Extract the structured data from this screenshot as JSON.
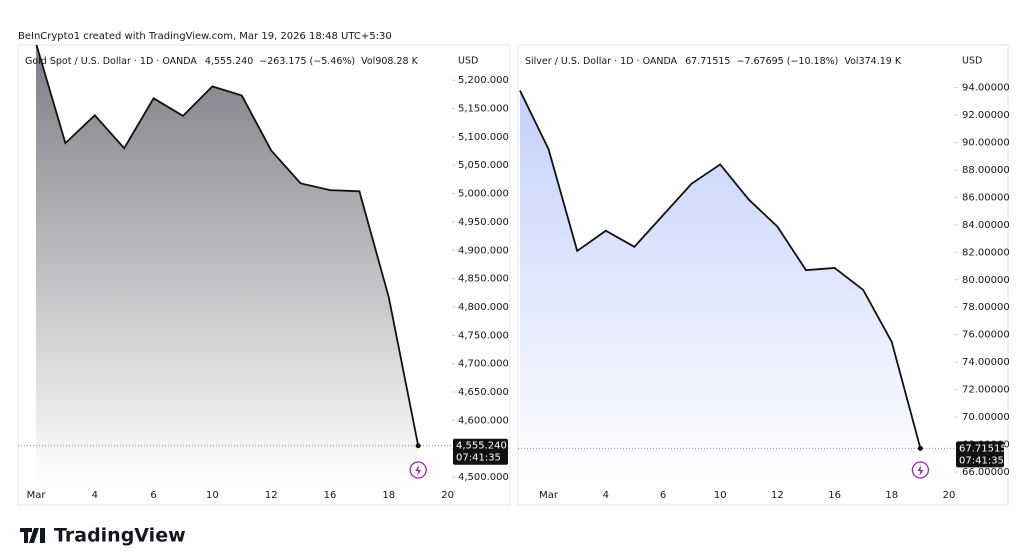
{
  "header": "BeInCrypto1 created with TradingView.com, Mar 19, 2026 18:48 UTC+5:30",
  "footer": "TradingView",
  "chart_data": [
    {
      "type": "area",
      "title": "Gold Spot / U.S. Dollar · 1D · OANDA",
      "price": "4,555.240",
      "change": "−263.175 (−5.46%)",
      "volume": "Vol908.28 K",
      "currency": "USD",
      "countdown": "07:41:35",
      "categories": [
        "Mar",
        null,
        "4",
        null,
        "6",
        null,
        "10",
        null,
        "12",
        null,
        "16",
        null,
        "18",
        null,
        "20"
      ],
      "values": [
        5265,
        5089,
        5138,
        5080,
        5168,
        5137,
        5189,
        5173,
        5076,
        5018,
        5006,
        5004,
        4817,
        4555.24,
        null
      ],
      "value_labels": [
        null,
        null,
        null,
        null,
        null,
        null,
        null,
        null,
        null,
        null,
        null,
        null,
        null,
        "4,555.240",
        null
      ],
      "color": "#111111",
      "fill": "#7c7c84",
      "ylim": [
        4486,
        5262
      ],
      "yticks": [
        {
          "value": 4500,
          "label": "4,500.000"
        },
        {
          "value": 4550,
          "label": "4,550.000"
        },
        {
          "value": 4600,
          "label": "4,600.000"
        },
        {
          "value": 4650,
          "label": "4,650.000"
        },
        {
          "value": 4700,
          "label": "4,700.000"
        },
        {
          "value": 4750,
          "label": "4,750.000"
        },
        {
          "value": 4800,
          "label": "4,800.000"
        },
        {
          "value": 4850,
          "label": "4,850.000"
        },
        {
          "value": 4900,
          "label": "4,900.000"
        },
        {
          "value": 4950,
          "label": "4,950.000"
        },
        {
          "value": 5000,
          "label": "5,000.000"
        },
        {
          "value": 5050,
          "label": "5,050.000"
        },
        {
          "value": 5100,
          "label": "5,100.000"
        },
        {
          "value": 5150,
          "label": "5,150.000"
        },
        {
          "value": 5200,
          "label": "5,200.000"
        }
      ]
    },
    {
      "type": "area",
      "title": "Silver / U.S. Dollar · 1D · OANDA",
      "price": "67.71515",
      "change": "−7.67695 (−10.18%)",
      "volume": "Vol374.19 K",
      "currency": "USD",
      "countdown": "07:41:35",
      "categories": [
        null,
        "Mar",
        null,
        "4",
        null,
        "6",
        null,
        "10",
        null,
        "12",
        null,
        "16",
        null,
        "18",
        null,
        "20"
      ],
      "values": [
        93.78,
        89.5,
        82.1,
        83.57,
        82.4,
        84.7,
        87.0,
        88.4,
        85.84,
        83.87,
        80.7,
        80.86,
        79.26,
        75.46,
        67.71515,
        null
      ],
      "value_labels": [
        null,
        null,
        null,
        null,
        null,
        null,
        null,
        null,
        null,
        null,
        null,
        null,
        null,
        null,
        "67.71515",
        null
      ],
      "color": "#111111",
      "fill": "#c3d0fb",
      "ylim": [
        65.05,
        97.1
      ],
      "yticks": [
        {
          "value": 66,
          "label": "66.00000"
        },
        {
          "value": 68,
          "label": "68.00000"
        },
        {
          "value": 70,
          "label": "70.00000"
        },
        {
          "value": 72,
          "label": "72.00000"
        },
        {
          "value": 74,
          "label": "74.00000"
        },
        {
          "value": 76,
          "label": "76.00000"
        },
        {
          "value": 78,
          "label": "78.00000"
        },
        {
          "value": 80,
          "label": "80.00000"
        },
        {
          "value": 82,
          "label": "82.00000"
        },
        {
          "value": 84,
          "label": "84.00000"
        },
        {
          "value": 86,
          "label": "86.00000"
        },
        {
          "value": 88,
          "label": "88.00000"
        },
        {
          "value": 90,
          "label": "90.00000"
        },
        {
          "value": 92,
          "label": "92.00000"
        },
        {
          "value": 94,
          "label": "94.00000"
        }
      ]
    }
  ]
}
